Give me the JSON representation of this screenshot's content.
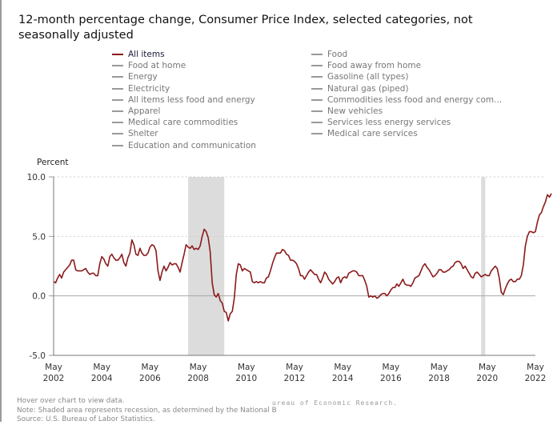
{
  "title": "12-month percentage change, Consumer Price Index, selected categories, not seasonally adjusted",
  "legend": {
    "column1": [
      {
        "label": "All items",
        "active": true
      },
      {
        "label": "Food at home",
        "active": false
      },
      {
        "label": "Energy",
        "active": false
      },
      {
        "label": "Electricity",
        "active": false
      },
      {
        "label": "All items less food and energy",
        "active": false
      },
      {
        "label": "Apparel",
        "active": false
      },
      {
        "label": "Medical care commodities",
        "active": false
      },
      {
        "label": "Shelter",
        "active": false
      },
      {
        "label": "Education and communication",
        "active": false
      }
    ],
    "column2": [
      {
        "label": "Food",
        "active": false
      },
      {
        "label": "Food away from home",
        "active": false
      },
      {
        "label": "Gasoline (all types)",
        "active": false
      },
      {
        "label": "Natural gas (piped)",
        "active": false
      },
      {
        "label": "Commodities less food and energy com...",
        "active": false
      },
      {
        "label": "New vehicles",
        "active": false
      },
      {
        "label": "Services less energy services",
        "active": false
      },
      {
        "label": "Medical care services",
        "active": false
      }
    ]
  },
  "colors": {
    "active_series": "#8b1a1a",
    "inactive_series": "#999999",
    "recession": "#dcdcdc",
    "grid": "#cccccc",
    "axis": "#999999"
  },
  "footer": {
    "hover_note": "Hover over chart to view data.",
    "recession_note": "Note: Shaded area represents recession, as determined by the National B",
    "recession_note_overlay": "ureau of Economic Research.",
    "source": "Source: U.S. Bureau of Labor Statistics."
  },
  "chart_data": {
    "type": "line",
    "title": "12-month percentage change, Consumer Price Index, selected categories, not seasonally adjusted",
    "ylabel": "Percent",
    "xlabel": "",
    "ylim": [
      -5.0,
      10.0
    ],
    "yticks": [
      {
        "value": 10.0,
        "label": "10.0"
      },
      {
        "value": 5.0,
        "label": "5.0"
      },
      {
        "value": 0.0,
        "label": "0.0"
      },
      {
        "value": -5.0,
        "label": "-5.0"
      }
    ],
    "xrange": [
      "2002-05",
      "2022-05"
    ],
    "xticks": [
      {
        "month": 0,
        "line1": "May",
        "line2": "2002"
      },
      {
        "month": 24,
        "line1": "May",
        "line2": "2004"
      },
      {
        "month": 48,
        "line1": "May",
        "line2": "2006"
      },
      {
        "month": 72,
        "line1": "May",
        "line2": "2008"
      },
      {
        "month": 96,
        "line1": "May",
        "line2": "2010"
      },
      {
        "month": 120,
        "line1": "May",
        "line2": "2012"
      },
      {
        "month": 144,
        "line1": "May",
        "line2": "2014"
      },
      {
        "month": 168,
        "line1": "May",
        "line2": "2016"
      },
      {
        "month": 192,
        "line1": "May",
        "line2": "2018"
      },
      {
        "month": 216,
        "line1": "May",
        "line2": "2020"
      },
      {
        "month": 240,
        "line1": "May",
        "line2": "2022"
      }
    ],
    "grid": "horizontal dotted",
    "recessions": [
      {
        "start": "2007-12",
        "end": "2009-06"
      },
      {
        "start": "2020-02",
        "end": "2020-04"
      }
    ],
    "series": [
      {
        "name": "All items",
        "start": "2002-05",
        "frequency": "monthly",
        "values": [
          1.2,
          1.1,
          1.5,
          1.8,
          1.5,
          2.0,
          2.2,
          2.4,
          2.6,
          3.0,
          3.0,
          2.2,
          2.1,
          2.1,
          2.1,
          2.2,
          2.3,
          2.0,
          1.8,
          1.9,
          1.9,
          1.7,
          1.7,
          2.7,
          3.3,
          3.1,
          2.7,
          2.5,
          3.3,
          3.5,
          3.2,
          3.0,
          3.0,
          3.2,
          3.5,
          2.8,
          2.5,
          3.2,
          3.6,
          4.7,
          4.3,
          3.5,
          3.4,
          4.0,
          3.6,
          3.4,
          3.4,
          3.6,
          4.1,
          4.3,
          4.2,
          3.8,
          2.1,
          1.3,
          2.0,
          2.5,
          2.1,
          2.4,
          2.8,
          2.6,
          2.7,
          2.7,
          2.4,
          2.0,
          2.8,
          3.5,
          4.3,
          4.1,
          4.0,
          4.2,
          3.9,
          4.0,
          3.9,
          4.2,
          5.0,
          5.6,
          5.4,
          4.9,
          3.7,
          1.1,
          0.1,
          -0.1,
          0.2,
          -0.4,
          -0.6,
          -1.3,
          -1.4,
          -2.1,
          -1.5,
          -1.3,
          -0.2,
          1.8,
          2.7,
          2.6,
          2.1,
          2.3,
          2.2,
          2.1,
          2.0,
          1.2,
          1.1,
          1.2,
          1.1,
          1.2,
          1.1,
          1.1,
          1.5,
          1.6,
          2.1,
          2.7,
          3.2,
          3.6,
          3.6,
          3.6,
          3.9,
          3.8,
          3.5,
          3.4,
          3.0,
          3.0,
          2.9,
          2.7,
          2.3,
          1.7,
          1.7,
          1.4,
          1.7,
          2.0,
          2.2,
          2.0,
          1.8,
          1.8,
          1.4,
          1.1,
          1.5,
          2.0,
          1.8,
          1.4,
          1.2,
          1.0,
          1.2,
          1.5,
          1.6,
          1.1,
          1.5,
          1.6,
          1.5,
          1.9,
          2.0,
          2.1,
          2.1,
          2.0,
          1.7,
          1.7,
          1.7,
          1.3,
          0.8,
          -0.1,
          0.0,
          -0.1,
          0.0,
          -0.2,
          -0.1,
          0.1,
          0.2,
          0.2,
          0.0,
          0.2,
          0.5,
          0.7,
          0.7,
          1.0,
          0.8,
          1.1,
          1.4,
          1.0,
          0.9,
          0.9,
          0.8,
          1.1,
          1.5,
          1.6,
          1.7,
          2.1,
          2.5,
          2.7,
          2.4,
          2.2,
          1.9,
          1.6,
          1.7,
          1.9,
          2.2,
          2.2,
          2.0,
          2.0,
          2.1,
          2.2,
          2.4,
          2.5,
          2.8,
          2.9,
          2.9,
          2.7,
          2.3,
          2.5,
          2.2,
          1.9,
          1.6,
          1.5,
          1.9,
          2.0,
          1.8,
          1.6,
          1.7,
          1.8,
          1.7,
          1.7,
          2.1,
          2.3,
          2.5,
          2.3,
          1.5,
          0.3,
          0.1,
          0.6,
          1.0,
          1.3,
          1.4,
          1.2,
          1.2,
          1.4,
          1.4,
          1.7,
          2.6,
          4.2,
          5.0,
          5.4,
          5.4,
          5.3,
          5.4,
          6.2,
          6.8,
          7.0,
          7.5,
          7.9,
          8.5,
          8.3,
          8.6
        ]
      }
    ]
  }
}
